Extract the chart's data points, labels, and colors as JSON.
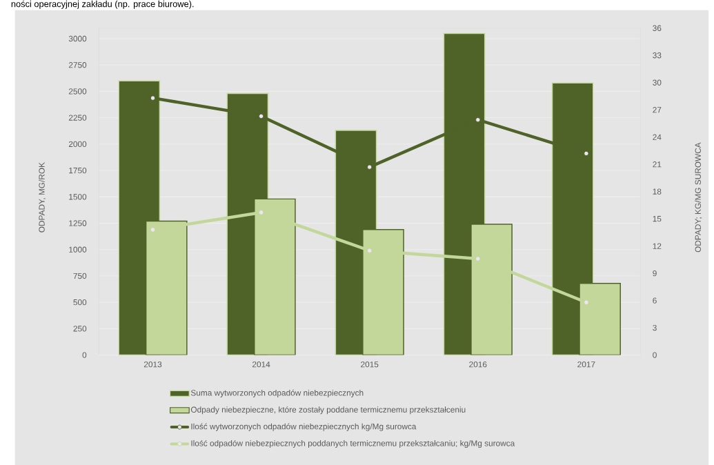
{
  "chart_data": {
    "type": "bar",
    "annotations": [
      "ności operacyjnej zakładu (np. prace biurowe)."
    ],
    "categories": [
      "2013",
      "2014",
      "2015",
      "2016",
      "2017"
    ],
    "series": [
      {
        "name": "Suma wytworzonych odpadów niebezpiecznych",
        "color": "#4f6228",
        "values": [
          2600,
          2480,
          2130,
          3050,
          2580
        ]
      },
      {
        "name": "Odpady niebezpieczne, które zostały poddane termicznemu przekształceniu",
        "color": "#c4d79b",
        "values": [
          1270,
          1480,
          1190,
          1240,
          680
        ]
      },
      {
        "name": "Ilość wytworzonych odpadów niebezpiecznych kg/Mg surowca",
        "type": "line",
        "axis": "y2",
        "color": "#4f6228",
        "values": [
          28.3,
          26.3,
          20.7,
          25.9,
          22.2
        ]
      },
      {
        "name": "Ilość odpadów niebezpiecznych poddanych termicznemu przekształcaniu; kg/Mg surowca",
        "type": "line",
        "axis": "y2",
        "color": "#c4d79b",
        "values": [
          13.8,
          15.7,
          11.5,
          10.6,
          5.8
        ]
      }
    ],
    "ylabel": "ODPADY, MG/ROK",
    "y2label": "ODPADY; KG/MG SUROWCA",
    "ylim": [
      0,
      3100
    ],
    "yticks": [
      0,
      250,
      500,
      750,
      1000,
      1250,
      1500,
      1750,
      2000,
      2250,
      2500,
      2750,
      3000
    ],
    "y2lim": [
      0,
      36
    ],
    "y2ticks": [
      0,
      3,
      6,
      9,
      12,
      15,
      18,
      21,
      24,
      27,
      30,
      33,
      36
    ],
    "grid": "y",
    "legend": "bottom",
    "marker": "circle"
  }
}
